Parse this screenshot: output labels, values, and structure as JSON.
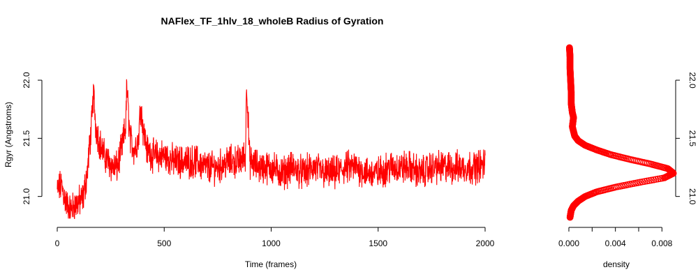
{
  "chart_data": [
    {
      "type": "line",
      "title": "NAFlex_TF_1hlv_18_wholeB Radius of Gyration",
      "xlabel": "Time (frames)",
      "ylabel": "Rgyr (Angstroms)",
      "xlim": [
        0,
        2000
      ],
      "ylim": [
        20.8,
        22.3
      ],
      "x_ticks": [
        0,
        500,
        1000,
        1500,
        2000
      ],
      "y_ticks": [
        21.0,
        21.5,
        22.0
      ],
      "x_tick_labels": [
        "0",
        "500",
        "1000",
        "1500",
        "2000"
      ],
      "y_tick_labels": [
        "21.0",
        "21.5",
        "22.0"
      ],
      "grid": false,
      "color": "#ff0000",
      "series": [
        {
          "x": [
            0,
            20,
            40,
            60,
            80,
            100,
            120,
            140,
            160,
            170,
            180,
            200,
            220,
            240,
            260,
            280,
            300,
            320,
            325,
            340,
            360,
            380,
            390,
            400,
            420,
            450,
            500,
            550,
            600,
            650,
            700,
            750,
            800,
            850,
            880,
            885,
            900,
            950,
            1000,
            1050,
            1100,
            1150,
            1200,
            1250,
            1300,
            1350,
            1400,
            1450,
            1500,
            1550,
            1600,
            1650,
            1700,
            1750,
            1800,
            1850,
            1900,
            1950,
            2000
          ],
          "y": [
            21.05,
            21.1,
            20.95,
            20.88,
            20.92,
            20.95,
            20.98,
            21.2,
            21.6,
            21.9,
            21.6,
            21.45,
            21.35,
            21.3,
            21.25,
            21.25,
            21.4,
            21.6,
            21.95,
            21.5,
            21.4,
            21.5,
            21.8,
            21.6,
            21.4,
            21.35,
            21.35,
            21.3,
            21.3,
            21.3,
            21.25,
            21.25,
            21.3,
            21.3,
            21.35,
            22.0,
            21.3,
            21.25,
            21.25,
            21.2,
            21.25,
            21.2,
            21.25,
            21.2,
            21.2,
            21.25,
            21.25,
            21.2,
            21.2,
            21.25,
            21.25,
            21.25,
            21.2,
            21.25,
            21.25,
            21.25,
            21.25,
            21.25,
            21.28
          ]
        }
      ]
    },
    {
      "type": "scatter",
      "title": "",
      "xlabel": "density",
      "ylabel": "",
      "xlim": [
        0,
        0.009
      ],
      "ylim": [
        20.8,
        22.3
      ],
      "x_ticks": [
        0,
        0.002,
        0.004,
        0.006,
        0.008
      ],
      "x_tick_labels": [
        "0.000",
        "0.004",
        "0.008"
      ],
      "x_tick_label_values": [
        0,
        0.004,
        0.008
      ],
      "y_ticks": [
        21.0,
        21.5,
        22.0
      ],
      "y_tick_labels": [
        "21.0",
        "21.5",
        "22.0"
      ],
      "grid": false,
      "color": "#ff0000",
      "series": [
        {
          "y": [
            20.82,
            20.88,
            20.92,
            20.96,
            21.0,
            21.04,
            21.08,
            21.12,
            21.16,
            21.2,
            21.24,
            21.28,
            21.32,
            21.36,
            21.4,
            21.44,
            21.48,
            21.52,
            21.56,
            21.6,
            21.64,
            21.68,
            21.72,
            21.8,
            21.9,
            22.0,
            22.1,
            22.2,
            22.28
          ],
          "x": [
            0.0001,
            0.0002,
            0.0004,
            0.0008,
            0.0014,
            0.0024,
            0.004,
            0.006,
            0.0082,
            0.009,
            0.0085,
            0.007,
            0.0052,
            0.0036,
            0.0024,
            0.0014,
            0.0008,
            0.0005,
            0.0004,
            0.0003,
            0.00035,
            0.0004,
            0.0003,
            0.0002,
            0.0002,
            0.00015,
            0.0001,
            0.0001,
            5e-05
          ]
        }
      ]
    }
  ]
}
